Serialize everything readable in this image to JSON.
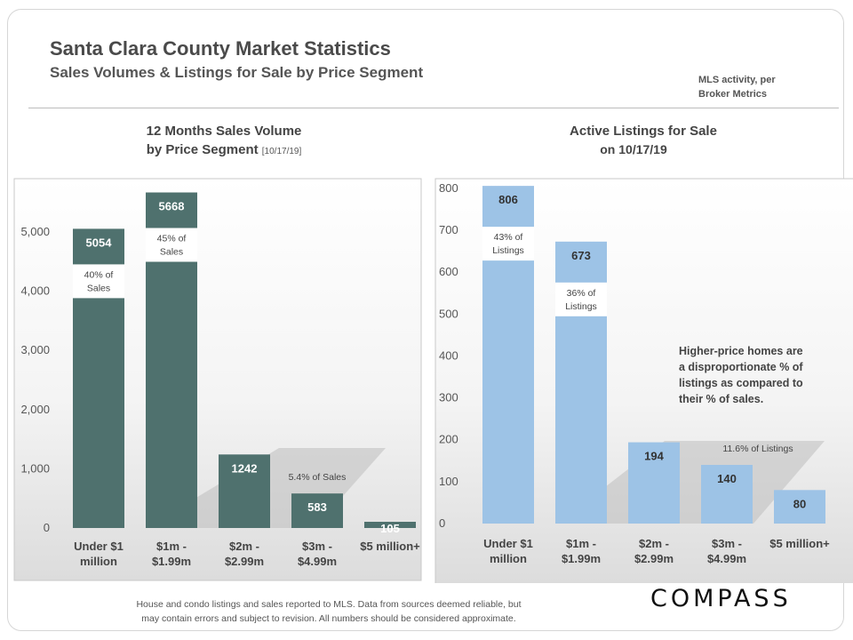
{
  "header": {
    "title": "Santa Clara County Market Statistics",
    "subtitle": "Sales Volumes & Listings for Sale by Price Segment",
    "source_line1": "MLS activity, per",
    "source_line2": "Broker Metrics"
  },
  "left_chart": {
    "title_line1": "12 Months Sales Volume",
    "title_line2": "by Price Segment",
    "title_date": "[10/17/19]"
  },
  "right_chart": {
    "title_line1": "Active Listings for Sale",
    "title_line2": "on 10/17/19"
  },
  "footer": {
    "line1": "House and condo listings and sales reported to MLS. Data from sources deemed reliable, but",
    "line2": "may contain errors and subject to revision. All numbers should be considered approximate."
  },
  "logo": "COMPASS",
  "colors": {
    "sales_bar": "#4f716e",
    "listings_bar": "#9dc3e6",
    "text": "#444444"
  },
  "chart_data": [
    {
      "type": "bar",
      "title": "12 Months Sales Volume by Price Segment [10/17/19]",
      "categories": [
        [
          "Under $1",
          "million"
        ],
        [
          "$1m -",
          "$1.99m"
        ],
        [
          "$2m -",
          "$2.99m"
        ],
        [
          "$3m -",
          "$4.99m"
        ],
        [
          "$5 million+"
        ]
      ],
      "values": [
        5054,
        5668,
        1242,
        583,
        105
      ],
      "ylim": [
        0,
        5800
      ],
      "ticks": [
        0,
        1000,
        2000,
        3000,
        4000,
        5000
      ],
      "tick_labels": [
        "0",
        "1,000",
        "2,000",
        "3,000",
        "4,000",
        "5,000"
      ],
      "callouts": [
        {
          "index": 0,
          "lines": [
            "40% of",
            "Sales"
          ]
        },
        {
          "index": 1,
          "lines": [
            "45% of",
            "Sales"
          ]
        }
      ],
      "annotations": [
        {
          "text": "5.4% of Sales",
          "near_index": 3
        }
      ]
    },
    {
      "type": "bar",
      "title": "Active Listings for Sale on 10/17/19",
      "categories": [
        [
          "Under $1",
          "million"
        ],
        [
          "$1m -",
          "$1.99m"
        ],
        [
          "$2m -",
          "$2.99m"
        ],
        [
          "$3m -",
          "$4.99m"
        ],
        [
          "$5 million+"
        ]
      ],
      "values": [
        806,
        673,
        194,
        140,
        80
      ],
      "ylim": [
        0,
        800
      ],
      "ticks": [
        0,
        100,
        200,
        300,
        400,
        500,
        600,
        700,
        800
      ],
      "tick_labels": [
        "0",
        "100",
        "200",
        "300",
        "400",
        "500",
        "600",
        "700",
        "800"
      ],
      "callouts": [
        {
          "index": 0,
          "lines": [
            "43% of",
            "Listings"
          ]
        },
        {
          "index": 1,
          "lines": [
            "36% of",
            "Listings"
          ]
        }
      ],
      "annotations": [
        {
          "text": "11.6% of Listings",
          "near_index": 3
        },
        {
          "text": "Higher-price homes are a disproportionate % of listings as compared to their % of sales.",
          "lines": [
            "Higher-price homes are",
            "a disproportionate % of",
            "listings as compared to",
            "their % of sales."
          ]
        }
      ]
    }
  ]
}
